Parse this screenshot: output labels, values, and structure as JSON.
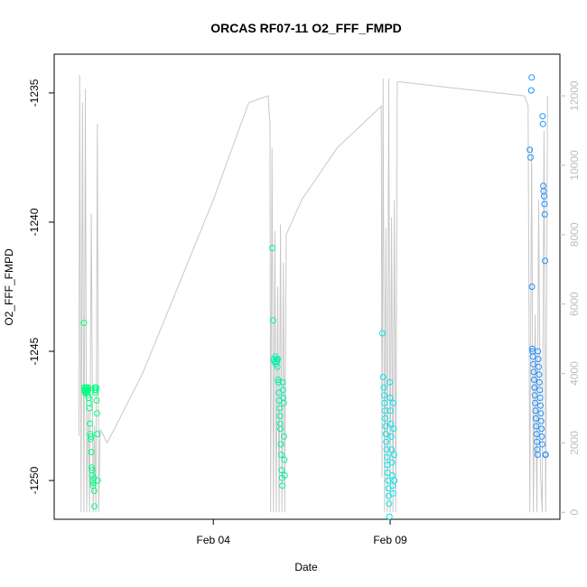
{
  "chart_data": {
    "type": "scatter",
    "title": "ORCAS RF07-11 O2_FFF_FMPD",
    "xlabel": "Date",
    "ylabel": "O2_FFF_FMPD",
    "x_ticks": [
      {
        "label": "Feb 04",
        "day": 4.0
      },
      {
        "label": "Feb 09",
        "day": 9.0
      }
    ],
    "y_ticks": [
      -1235,
      -1240,
      -1245,
      -1250
    ],
    "ylim": [
      -1251.5,
      -1233.5
    ],
    "xlim_days": [
      -0.5,
      13.8
    ],
    "secondary_y_ticks": [
      0,
      2000,
      4000,
      6000,
      8000,
      10000,
      12000
    ],
    "secondary_ylim": [
      -200,
      13200
    ],
    "grid": false,
    "colors": {
      "rf07": "#00ff7f",
      "rf08": "#00f0a8",
      "rf09": "#00e6ee",
      "rf10": "#1e90ff",
      "altitude_line": "#c8c8c8",
      "secondary_axis": "#bdbdbd"
    },
    "flights": [
      {
        "name": "RF07",
        "x": [
          0.34,
          0.35,
          0.36,
          0.37,
          0.38,
          0.39,
          0.4,
          0.41,
          0.42,
          0.43,
          0.44,
          0.45,
          0.46,
          0.47,
          0.48,
          0.49,
          0.5,
          0.51,
          0.52,
          0.53,
          0.54,
          0.55,
          0.56,
          0.57,
          0.58,
          0.59,
          0.6,
          0.61,
          0.62,
          0.63,
          0.64,
          0.65,
          0.66,
          0.67,
          0.68,
          0.69,
          0.7,
          0.71,
          0.72,
          0.73
        ],
        "y": [
          -1243.9,
          -1246.4,
          -1246.5,
          -1246.6,
          -1246.5,
          -1246.4,
          -1246.6,
          -1246.5,
          -1246.4,
          -1246.5,
          -1246.6,
          -1246.7,
          -1246.5,
          -1246.4,
          -1246.8,
          -1247.0,
          -1247.2,
          -1247.8,
          -1248.2,
          -1248.4,
          -1248.3,
          -1248.9,
          -1249.5,
          -1249.6,
          -1249.8,
          -1250.0,
          -1250.2,
          -1250.1,
          -1249.9,
          -1250.4,
          -1251.0,
          -1246.5,
          -1246.4,
          -1246.6,
          -1246.5,
          -1246.4,
          -1246.9,
          -1247.4,
          -1248.2,
          -1250.0
        ]
      },
      {
        "name": "RF08",
        "x": [
          5.67,
          5.69,
          5.71,
          5.73,
          5.75,
          5.77,
          5.79,
          5.8,
          5.81,
          5.82,
          5.83,
          5.84,
          5.85,
          5.86,
          5.87,
          5.88,
          5.89,
          5.9,
          5.91,
          5.92,
          5.93,
          5.94,
          5.95,
          5.96,
          5.97,
          5.98,
          5.99,
          6.0,
          6.01,
          6.02
        ],
        "y": [
          -1241.0,
          -1243.8,
          -1245.3,
          -1245.4,
          -1245.2,
          -1245.5,
          -1245.3,
          -1245.4,
          -1245.6,
          -1245.3,
          -1246.1,
          -1246.2,
          -1246.6,
          -1246.9,
          -1247.2,
          -1247.5,
          -1247.8,
          -1248.0,
          -1248.6,
          -1249.0,
          -1249.6,
          -1249.9,
          -1250.2,
          -1246.2,
          -1246.5,
          -1246.8,
          -1247.0,
          -1248.3,
          -1249.2,
          -1249.8
        ]
      },
      {
        "name": "RF09",
        "x": [
          8.78,
          8.8,
          8.82,
          8.83,
          8.84,
          8.85,
          8.86,
          8.87,
          8.88,
          8.89,
          8.9,
          8.91,
          8.92,
          8.93,
          8.94,
          8.95,
          8.96,
          8.97,
          8.98,
          8.99,
          9.0,
          9.01,
          9.02,
          9.03,
          9.04,
          9.05,
          9.06,
          9.07,
          9.08,
          9.09,
          9.1,
          9.11,
          9.12
        ],
        "y": [
          -1244.3,
          -1246.0,
          -1246.4,
          -1246.7,
          -1247.0,
          -1247.3,
          -1247.6,
          -1247.9,
          -1248.2,
          -1248.5,
          -1248.8,
          -1249.1,
          -1249.4,
          -1249.7,
          -1250.0,
          -1250.3,
          -1250.6,
          -1250.9,
          -1251.4,
          -1246.2,
          -1246.8,
          -1247.3,
          -1247.8,
          -1248.3,
          -1248.8,
          -1249.3,
          -1249.8,
          -1250.2,
          -1250.5,
          -1247.0,
          -1248.0,
          -1249.0,
          -1250.0
        ]
      },
      {
        "name": "RF10",
        "x": [
          12.95,
          12.97,
          12.99,
          13.0,
          13.01,
          13.02,
          13.03,
          13.04,
          13.05,
          13.06,
          13.07,
          13.08,
          13.09,
          13.1,
          13.11,
          13.12,
          13.13,
          13.14,
          13.15,
          13.16,
          13.17,
          13.18,
          13.19,
          13.2,
          13.21,
          13.22,
          13.23,
          13.24,
          13.25,
          13.26,
          13.27,
          13.28,
          13.29,
          13.3,
          13.31,
          13.32,
          13.33,
          13.34,
          13.35,
          13.36,
          13.37,
          13.38,
          13.39,
          13.4
        ],
        "y": [
          -1237.2,
          -1237.5,
          -1234.9,
          -1234.4,
          -1242.5,
          -1244.9,
          -1245.0,
          -1245.2,
          -1245.5,
          -1245.8,
          -1246.1,
          -1246.4,
          -1246.7,
          -1247.0,
          -1247.3,
          -1247.6,
          -1247.9,
          -1248.2,
          -1248.5,
          -1248.8,
          -1249.0,
          -1245.0,
          -1245.3,
          -1245.6,
          -1245.9,
          -1246.2,
          -1246.5,
          -1246.8,
          -1247.1,
          -1247.4,
          -1247.7,
          -1248.0,
          -1248.3,
          -1248.6,
          -1235.9,
          -1236.2,
          -1238.6,
          -1238.8,
          -1239.0,
          -1239.3,
          -1239.7,
          -1241.5,
          -1249.0,
          -1249.0
        ]
      }
    ],
    "altitude_secondary": {
      "x": [
        0.2,
        0.22,
        0.26,
        0.3,
        0.34,
        0.38,
        0.42,
        0.46,
        0.5,
        0.55,
        0.6,
        0.64,
        0.68,
        0.72,
        0.76,
        0.8,
        1.0,
        2.0,
        3.0,
        4.0,
        5.0,
        5.55,
        5.6,
        5.62,
        5.66,
        5.7,
        5.74,
        5.78,
        5.82,
        5.86,
        5.9,
        5.94,
        5.98,
        6.02,
        6.06,
        6.5,
        7.5,
        8.75,
        8.77,
        8.8,
        8.84,
        8.88,
        8.92,
        8.96,
        9.0,
        9.04,
        9.08,
        9.12,
        9.16,
        9.2,
        9.3,
        11.0,
        12.8,
        12.9,
        12.95,
        13.0,
        13.05,
        13.1,
        13.15,
        13.2,
        13.25,
        13.3,
        13.35,
        13.4,
        13.45
      ],
      "y": [
        2200,
        12600,
        0,
        11800,
        0,
        12200,
        0,
        3000,
        0,
        8600,
        0,
        2500,
        0,
        11200,
        0,
        2400,
        2000,
        4000,
        6500,
        9000,
        11800,
        12000,
        11200,
        0,
        10500,
        0,
        8100,
        0,
        6500,
        0,
        8300,
        0,
        7200,
        0,
        8000,
        9000,
        10500,
        11700,
        1000,
        12500,
        0,
        8200,
        0,
        12500,
        0,
        8500,
        0,
        9000,
        0,
        12400,
        12400,
        12200,
        12000,
        11700,
        0,
        10500,
        0,
        5700,
        0,
        9000,
        1100,
        0,
        11000,
        0,
        12000
      ]
    }
  }
}
